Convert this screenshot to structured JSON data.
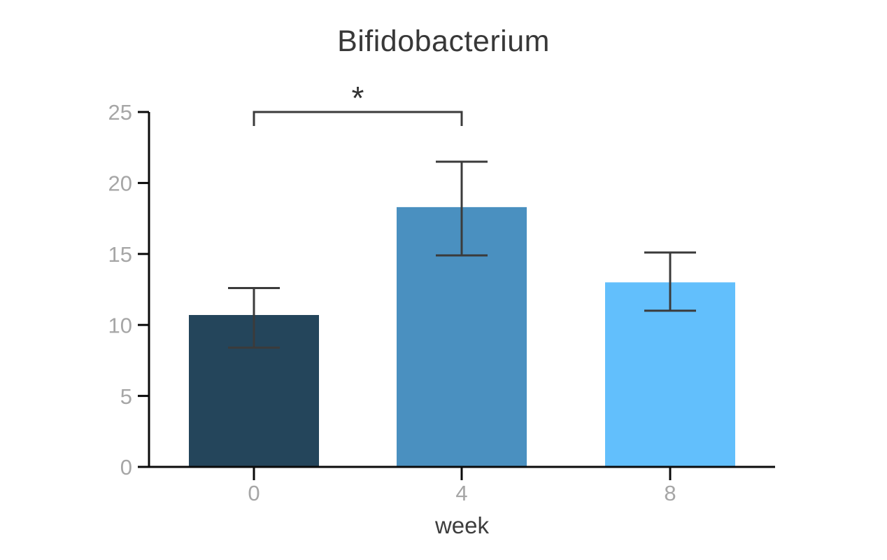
{
  "chart_data": {
    "type": "bar",
    "title": "Bifidobacterium",
    "xlabel": "week",
    "ylabel": "",
    "categories": [
      "0",
      "4",
      "8"
    ],
    "values": [
      10.7,
      18.3,
      13.0
    ],
    "error_top": [
      12.6,
      21.5,
      15.1
    ],
    "error_bottom": [
      8.4,
      14.9,
      11.0
    ],
    "ylim": [
      0,
      25
    ],
    "yticks": [
      0,
      5,
      10,
      15,
      20,
      25
    ],
    "grid": false,
    "legend": "none",
    "background_color": "#FFFFFF",
    "bar_colors": [
      "#24455B",
      "#4A90C0",
      "#62BFFC"
    ],
    "error_bar_color": "#3B3B3B",
    "axis_color": "#0A0A0A",
    "tick_label_color": "#A6A6A6",
    "axis_label_color": "#3D3D3D",
    "title_color": "#383838",
    "significance": {
      "from_category": "0",
      "to_category": "4",
      "label": "*",
      "bracket_color": "#3B3B3B"
    }
  }
}
